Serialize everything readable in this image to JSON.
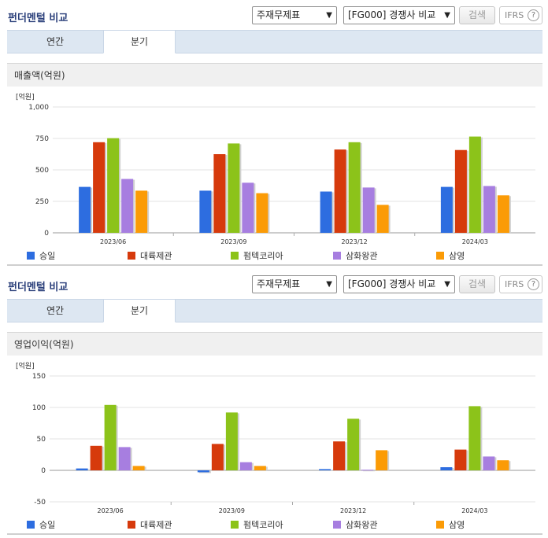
{
  "panels": [
    {
      "title": "펀더멘털 비교",
      "select_statement": "주재무제표",
      "select_compare": "[FG000] 경쟁사 비교",
      "search_label": "검색",
      "ifrs_label": "IFRS",
      "help_label": "?",
      "tabs": [
        {
          "label": "연간"
        },
        {
          "label": "분기"
        }
      ],
      "active_tab": 1,
      "subtitle": "매출액(억원)",
      "unit_label": "[억원]"
    },
    {
      "title": "펀더멘털 비교",
      "select_statement": "주재무제표",
      "select_compare": "[FG000] 경쟁사 비교",
      "search_label": "검색",
      "ifrs_label": "IFRS",
      "help_label": "?",
      "tabs": [
        {
          "label": "연간"
        },
        {
          "label": "분기"
        }
      ],
      "active_tab": 1,
      "subtitle": "영업이익(억원)",
      "unit_label": "[억원]"
    }
  ],
  "chart_data": [
    {
      "type": "bar",
      "title": "매출액(억원)",
      "ylabel": "[억원]",
      "categories": [
        "2023/06",
        "2023/09",
        "2023/12",
        "2024/03"
      ],
      "ylim": [
        0,
        1000
      ],
      "yticks": [
        0,
        250,
        500,
        750,
        1000
      ],
      "grid": true,
      "legend": "bottom",
      "series": [
        {
          "name": "승일",
          "color": "#2d6de0",
          "values": [
            365,
            335,
            328,
            365
          ]
        },
        {
          "name": "대륙제관",
          "color": "#d63a0c",
          "values": [
            720,
            625,
            662,
            658
          ]
        },
        {
          "name": "펌텍코리아",
          "color": "#8cc31a",
          "values": [
            752,
            710,
            720,
            765
          ]
        },
        {
          "name": "삼화왕관",
          "color": "#a77ee0",
          "values": [
            428,
            398,
            360,
            372
          ]
        },
        {
          "name": "삼영",
          "color": "#fb9b06",
          "values": [
            335,
            315,
            222,
            298
          ]
        }
      ]
    },
    {
      "type": "bar",
      "title": "영업이익(억원)",
      "ylabel": "[억원]",
      "categories": [
        "2023/06",
        "2023/09",
        "2023/12",
        "2024/03"
      ],
      "ylim": [
        -50,
        150
      ],
      "yticks": [
        -50,
        0,
        50,
        100,
        150
      ],
      "grid": true,
      "legend": "bottom",
      "series": [
        {
          "name": "승일",
          "color": "#2d6de0",
          "values": [
            3,
            -3,
            2,
            5
          ]
        },
        {
          "name": "대륙제관",
          "color": "#d63a0c",
          "values": [
            39,
            42,
            46,
            33
          ]
        },
        {
          "name": "펌텍코리아",
          "color": "#8cc31a",
          "values": [
            104,
            92,
            82,
            102
          ]
        },
        {
          "name": "삼화왕관",
          "color": "#a77ee0",
          "values": [
            37,
            13,
            1,
            22
          ]
        },
        {
          "name": "삼영",
          "color": "#fb9b06",
          "values": [
            7,
            7,
            32,
            16
          ]
        }
      ]
    }
  ]
}
